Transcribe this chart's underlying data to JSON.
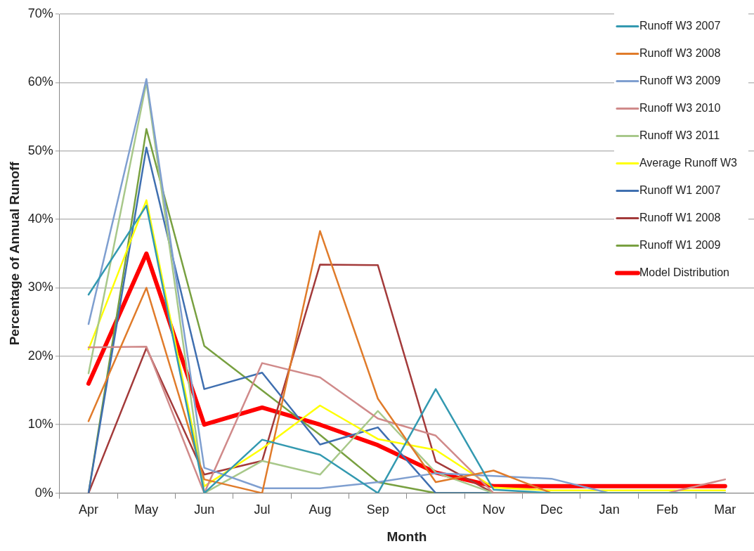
{
  "chart_data": {
    "type": "line",
    "xlabel": "Month",
    "ylabel": "Percentage of Annual Runoff",
    "categories": [
      "Apr",
      "May",
      "Jun",
      "Jul",
      "Aug",
      "Sep",
      "Oct",
      "Nov",
      "Dec",
      "Jan",
      "Feb",
      "Mar"
    ],
    "ylim": [
      0,
      70
    ],
    "yticks": [
      {
        "value": 0,
        "label": "0%"
      },
      {
        "value": 10,
        "label": "10%"
      },
      {
        "value": 20,
        "label": "20%"
      },
      {
        "value": 30,
        "label": "30%"
      },
      {
        "value": 40,
        "label": "40%"
      },
      {
        "value": 50,
        "label": "50%"
      },
      {
        "value": 60,
        "label": "60%"
      },
      {
        "value": 70,
        "label": "70%"
      }
    ],
    "grid": "y",
    "legend": "top right",
    "marker": "none",
    "line_style": "solid",
    "series": [
      {
        "name": "Runoff W3 2007",
        "color": "#3399b0",
        "values": [
          29,
          42,
          0,
          7.8,
          5.6,
          0,
          15.2,
          0.5,
          0,
          0,
          0,
          0
        ]
      },
      {
        "name": "Runoff W3 2008",
        "color": "#e07b2a",
        "values": [
          10.5,
          30,
          2,
          0,
          38.3,
          13.8,
          1.6,
          3.3,
          0,
          0,
          0,
          0
        ]
      },
      {
        "name": "Runoff W3 2009",
        "color": "#7f9fd0",
        "values": [
          24.7,
          60.5,
          3.7,
          0.7,
          0.7,
          1.6,
          2.9,
          2.5,
          2.1,
          0,
          0,
          0
        ]
      },
      {
        "name": "Runoff W3 2010",
        "color": "#d08a8a",
        "values": [
          21.3,
          21.4,
          0,
          19,
          16.9,
          10.9,
          8.4,
          0,
          0,
          0,
          0,
          2
        ]
      },
      {
        "name": "Runoff W3 2011",
        "color": "#a8c88a",
        "values": [
          17.5,
          60,
          0,
          4.7,
          2.7,
          12,
          3,
          0,
          0,
          0,
          0,
          0
        ]
      },
      {
        "name": "Average Runoff W3",
        "color": "#ffff00",
        "values": [
          21,
          42.8,
          1,
          6.5,
          12.8,
          7.9,
          6.3,
          0.8,
          0.4,
          0.4,
          0.4,
          0.4
        ]
      },
      {
        "name": "Runoff W1 2007",
        "color": "#3f6fb0",
        "values": [
          0,
          50.5,
          15.2,
          17.6,
          7.1,
          9.6,
          0,
          0,
          0,
          0,
          0,
          0
        ]
      },
      {
        "name": "Runoff W1 2008",
        "color": "#a33a3a",
        "values": [
          0,
          21.2,
          2.7,
          4.7,
          33.4,
          33.3,
          4.6,
          0,
          0,
          0,
          0,
          0
        ]
      },
      {
        "name": "Runoff W1 2009",
        "color": "#78a040",
        "values": [
          0,
          53.2,
          21.5,
          15,
          8.5,
          1.6,
          0,
          0,
          0,
          0,
          0,
          0
        ]
      },
      {
        "name": "Model Distribution",
        "color": "#ff0000",
        "values": [
          16,
          35,
          10,
          12.5,
          10,
          7,
          3,
          1,
          1,
          1,
          1,
          1
        ]
      }
    ]
  }
}
